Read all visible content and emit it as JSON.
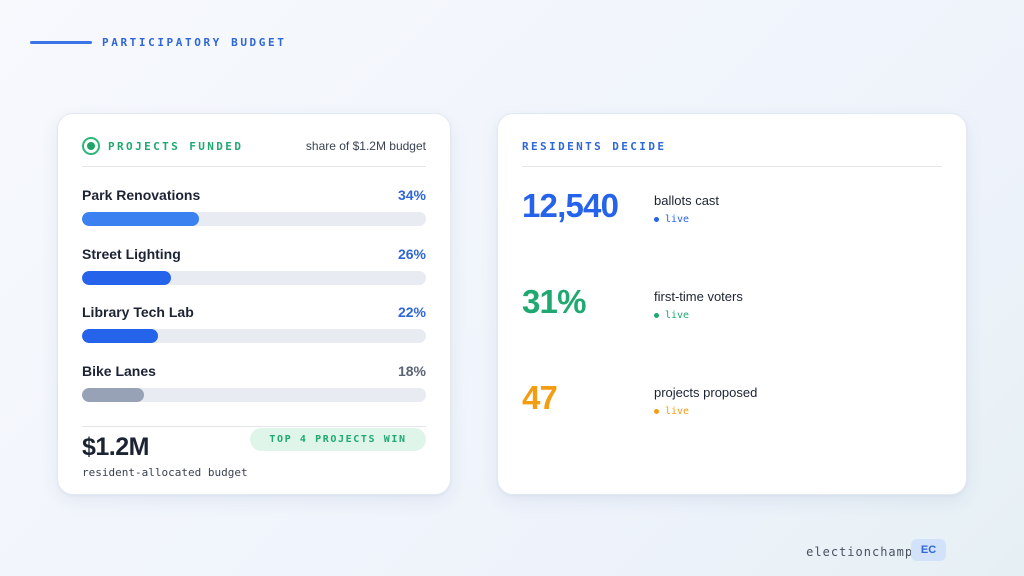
{
  "header": {
    "title": "PARTICIPATORY BUDGET"
  },
  "funded": {
    "title": "PROJECTS FUNDED",
    "subtitle": "share of $1.2M budget",
    "icon": "status-dot-icon",
    "projects": [
      {
        "name": "Park Renovations",
        "pct_label": "34%",
        "share": 34,
        "color": "#3b82f0",
        "text_color": "#2f66d8"
      },
      {
        "name": "Street Lighting",
        "pct_label": "26%",
        "share": 26,
        "color": "#2563eb",
        "text_color": "#2f66d8"
      },
      {
        "name": "Library Tech Lab",
        "pct_label": "22%",
        "share": 22,
        "color": "#2563eb",
        "text_color": "#2f66d8"
      },
      {
        "name": "Bike Lanes",
        "pct_label": "18%",
        "share": 18,
        "color": "#98a2b6",
        "text_color": "#5b6475"
      }
    ],
    "total": "$1.2M",
    "total_caption": "resident-allocated budget",
    "badge": "TOP 4 PROJECTS WIN"
  },
  "residents": {
    "title": "RESIDENTS DECIDE",
    "stats": [
      {
        "value": "12,540",
        "label": "ballots cast",
        "live": "live",
        "color": "#2563eb"
      },
      {
        "value": "31%",
        "label": "first-time voters",
        "live": "live",
        "color": "#1fa971"
      },
      {
        "value": "47",
        "label": "projects proposed",
        "live": "live",
        "color": "#f29d12"
      }
    ]
  },
  "footer": {
    "brand": "electionchamp.com",
    "badge": "EC"
  }
}
